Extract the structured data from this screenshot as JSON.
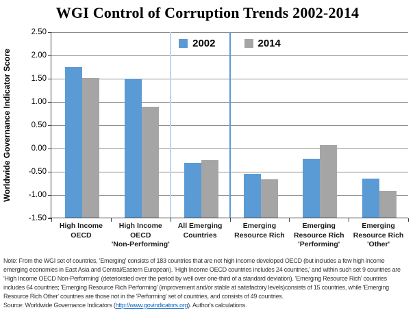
{
  "chart_data": {
    "type": "bar",
    "title": "WGI Control of Corruption Trends 2002-2014",
    "ylabel": "Worldwide Governance Indicator Score",
    "ylim": [
      -1.5,
      2.5
    ],
    "ytick_step": 0.5,
    "ytick_labels": [
      "2.50",
      "2.00",
      "1.50",
      "1.00",
      "0.50",
      "0.00",
      "-0.50",
      "-1.00",
      "-1.50"
    ],
    "grid": true,
    "legend_position": "top-center",
    "bar_base": -1.5,
    "categories": [
      {
        "lines": [
          "High Income",
          "OECD"
        ]
      },
      {
        "lines": [
          "High Income",
          "OECD",
          "'Non-Performing'"
        ]
      },
      {
        "lines": [
          "All Emerging",
          "Countries"
        ]
      },
      {
        "lines": [
          "Emerging",
          "Resource Rich"
        ]
      },
      {
        "lines": [
          "Emerging",
          "Resource Rich",
          "'Performing'"
        ]
      },
      {
        "lines": [
          "Emerging",
          "Resource Rich",
          "'Other'"
        ]
      }
    ],
    "series": [
      {
        "name": "2002",
        "color": "#5b9bd5",
        "values": [
          1.75,
          1.5,
          -0.31,
          -0.54,
          -0.22,
          -0.65
        ]
      },
      {
        "name": "2014",
        "color": "#a5a5a5",
        "values": [
          1.52,
          0.9,
          -0.25,
          -0.66,
          0.08,
          -0.91
        ]
      }
    ],
    "separators": [
      {
        "after_category": 2,
        "color": "#bdd7ee",
        "width": 2
      },
      {
        "after_category": 3,
        "color": "#5b9bd5",
        "width": 2
      }
    ],
    "colors": {
      "axis": "#404040",
      "gridline": "#8c8c8c"
    }
  },
  "footnote": {
    "note_lines": [
      "Note: From the WGI set of countries, 'Emerging'  consists of 183 countries that are not high income developed  OECD (but includes a few high income",
      "emerging  economies in East Asia and Central/Eastern  European).  'High Income OECD countries includes 24 countries,' and within such set 9 countries are",
      "'High Income OECD Non-Performing' (deteriorated  over the period by well over one-third of a standard deviation).  'Emerging  Resource Rich' countries",
      "includes 64 countries; 'Emerging  Resource Rich Performing'  (improvement  and/or stable at satisfactory levels)consists of 15 countries, while 'Emerging",
      "Resource Rich Other'  countries are  those not in the 'Performing'  set of countries, and consists of 49 countries."
    ],
    "source_prefix": "Source:  Worldwide Governance  Indicators (",
    "source_link": "http://www.govindicators.org",
    "source_suffix": ").   Author's calculations."
  }
}
